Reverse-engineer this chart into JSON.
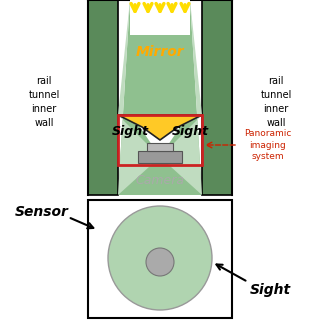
{
  "bg_color": "#ffffff",
  "tunnel_green": "#8fc08f",
  "tunnel_wall_dark": "#5a8a5a",
  "mirror_gold": "#ffc926",
  "mirror_edge": "#222222",
  "cam_box_red": "#cc2222",
  "cam_gray": "#999999",
  "cam_gray2": "#bbbbbb",
  "beam_white": "#f0f0f0",
  "sensor_green": "#b0d4b0",
  "sensor_gray": "#aaaaaa",
  "panoramic_red": "#cc2200",
  "arrow_yellow": "#ffdd00",
  "text_black": "#000000",
  "text_gray": "#aaaaaa",
  "text_gold": "#ffaa00",
  "sight_green": "#c0dcc0",
  "wall_text_left": "rail\ntunnel\ninner\nwall",
  "wall_text_right": "rail\ntunnel\ninner\nwall",
  "pan_text": "Panoramic\nimaging\nsystem"
}
